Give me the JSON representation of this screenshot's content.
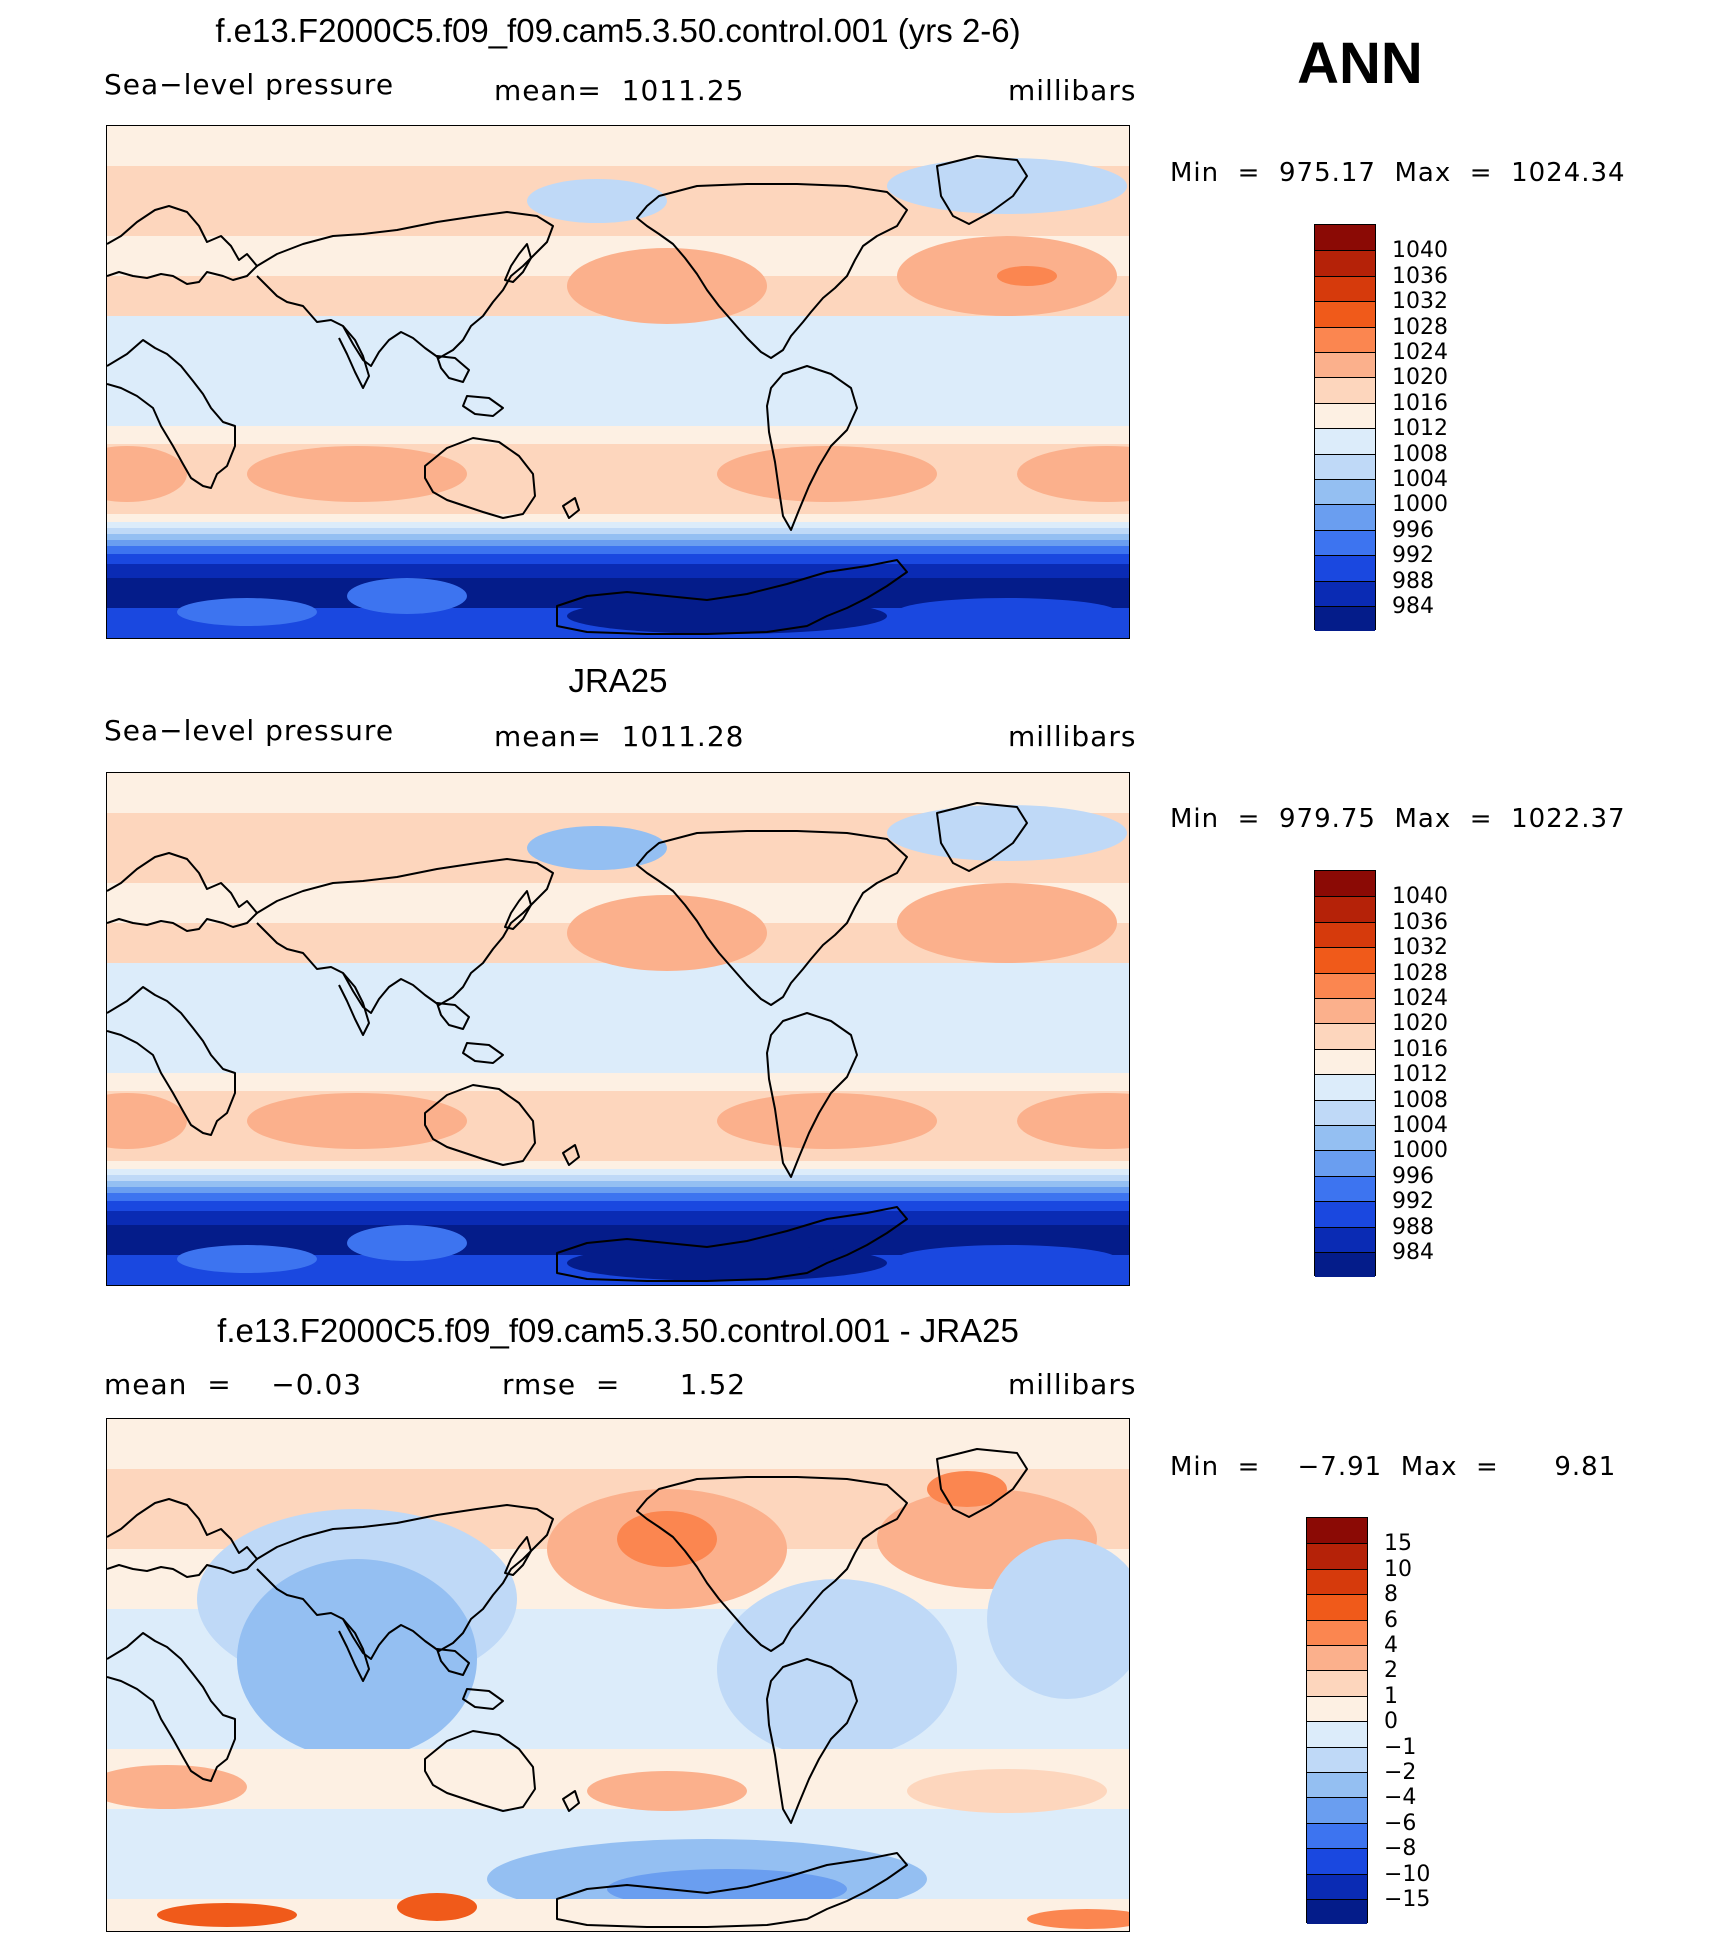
{
  "season_label": "ANN",
  "panels": [
    {
      "title": "f.e13.F2000C5.f09_f09.cam5.3.50.control.001 (yrs 2-6)",
      "left": "Sea−level pressure",
      "center": "mean=  1011.25",
      "right": "millibars",
      "minmax": "Min  =  975.17  Max  =  1024.34",
      "variant": "model"
    },
    {
      "title": "JRA25",
      "left": "Sea−level pressure",
      "center": "mean=  1011.28",
      "right": "millibars",
      "minmax": "Min  =  979.75  Max  =  1022.37",
      "variant": "obs"
    },
    {
      "title": "f.e13.F2000C5.f09_f09.cam5.3.50.control.001 - JRA25",
      "left": "mean  =    −0.03",
      "center": "rmse  =      1.52",
      "right": "millibars",
      "minmax": "Min  =    −7.91  Max  =      9.81",
      "variant": "diff"
    }
  ],
  "colorbars": [
    {
      "labels": [
        "1040",
        "1036",
        "1032",
        "1028",
        "1024",
        "1020",
        "1016",
        "1012",
        "1008",
        "1004",
        "1000",
        "996",
        "992",
        "988",
        "984"
      ],
      "colors": [
        "#8b0a05",
        "#b52208",
        "#d63a0c",
        "#f05a1a",
        "#fb8650",
        "#fbb08c",
        "#fdd6bd",
        "#fdf0e3",
        "#dcecfa",
        "#bfd9f7",
        "#94bff2",
        "#6a9ef0",
        "#3d74f0",
        "#1a48e0",
        "#0a2bb4",
        "#041c8a"
      ]
    },
    {
      "labels": [
        "1040",
        "1036",
        "1032",
        "1028",
        "1024",
        "1020",
        "1016",
        "1012",
        "1008",
        "1004",
        "1000",
        "996",
        "992",
        "988",
        "984"
      ],
      "colors": [
        "#8b0a05",
        "#b52208",
        "#d63a0c",
        "#f05a1a",
        "#fb8650",
        "#fbb08c",
        "#fdd6bd",
        "#fdf0e3",
        "#dcecfa",
        "#bfd9f7",
        "#94bff2",
        "#6a9ef0",
        "#3d74f0",
        "#1a48e0",
        "#0a2bb4",
        "#041c8a"
      ]
    },
    {
      "labels": [
        "15",
        "10",
        "8",
        "6",
        "4",
        "2",
        "1",
        "0",
        "−1",
        "−2",
        "−4",
        "−6",
        "−8",
        "−10",
        "−15"
      ],
      "colors": [
        "#8b0a05",
        "#b52208",
        "#d63a0c",
        "#f05a1a",
        "#fb8650",
        "#fbb08c",
        "#fdd6bd",
        "#fdf0e3",
        "#dcecfa",
        "#bfd9f7",
        "#94bff2",
        "#6a9ef0",
        "#3d74f0",
        "#1a48e0",
        "#0a2bb4",
        "#041c8a"
      ]
    }
  ]
}
